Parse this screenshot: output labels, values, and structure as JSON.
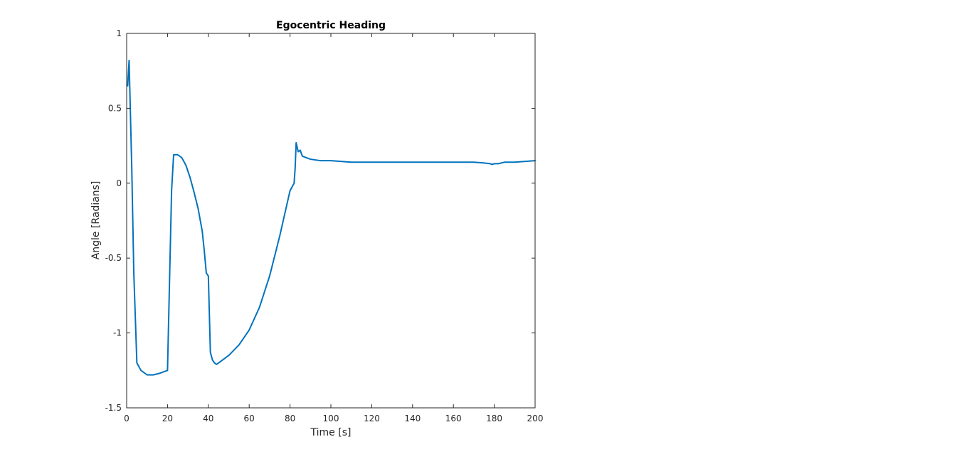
{
  "chart_data": {
    "type": "line",
    "title": "Egocentric Heading",
    "xlabel": "Time [s]",
    "ylabel": "Angle [Radians]",
    "xlim": [
      0,
      200
    ],
    "ylim": [
      -1.5,
      1
    ],
    "xticks": [
      0,
      20,
      40,
      60,
      80,
      100,
      120,
      140,
      160,
      180,
      200
    ],
    "yticks": [
      -1.5,
      -1,
      -0.5,
      0,
      0.5,
      1
    ],
    "xtick_labels": [
      "0",
      "20",
      "40",
      "60",
      "80",
      "100",
      "120",
      "140",
      "160",
      "180",
      "200"
    ],
    "ytick_labels": [
      "-1.5",
      "-1",
      "-0.5",
      "0",
      "0.5",
      "1"
    ],
    "grid": false,
    "line_color": "#0072bd",
    "series": [
      {
        "x": [
          0.5,
          1.2,
          2.5,
          3.5,
          5,
          7,
          10,
          13,
          16,
          20,
          21,
          22,
          23,
          24,
          25,
          27,
          29,
          31,
          33,
          35,
          37,
          38,
          39,
          40,
          41,
          42,
          43,
          44,
          45,
          47,
          50,
          55,
          60,
          65,
          70,
          75,
          80,
          82,
          82.5,
          83,
          83.5,
          84,
          85,
          86,
          88,
          90,
          95,
          100,
          110,
          120,
          130,
          140,
          150,
          160,
          170,
          175,
          178,
          179,
          180,
          182,
          185,
          190,
          200
        ],
        "y": [
          0.65,
          0.82,
          0.1,
          -0.6,
          -1.2,
          -1.25,
          -1.28,
          -1.28,
          -1.27,
          -1.25,
          -0.65,
          -0.05,
          0.19,
          0.19,
          0.19,
          0.17,
          0.12,
          0.04,
          -0.06,
          -0.17,
          -0.32,
          -0.45,
          -0.6,
          -0.62,
          -1.13,
          -1.18,
          -1.2,
          -1.21,
          -1.2,
          -1.18,
          -1.15,
          -1.08,
          -0.98,
          -0.83,
          -0.62,
          -0.35,
          -0.05,
          0.0,
          0.1,
          0.27,
          0.24,
          0.21,
          0.22,
          0.18,
          0.17,
          0.16,
          0.15,
          0.15,
          0.14,
          0.14,
          0.14,
          0.14,
          0.14,
          0.14,
          0.14,
          0.135,
          0.13,
          0.125,
          0.13,
          0.13,
          0.14,
          0.14,
          0.15
        ]
      }
    ]
  }
}
